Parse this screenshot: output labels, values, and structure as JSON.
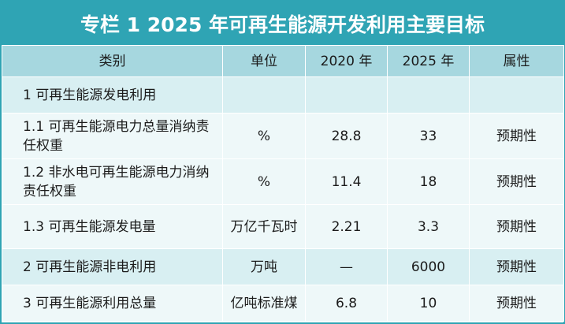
{
  "title": "专栏 1 2025 年可再生能源开发利用主要目标",
  "columns": [
    "类别",
    "单位",
    "2020 年",
    "2025 年",
    "属性"
  ],
  "rows": [
    {
      "category": "1 可再生能源发电利用",
      "unit": "",
      "y2020": "",
      "y2025": "",
      "attribute": ""
    },
    {
      "category": "1.1 可再生能源电力总量消纳责任权重",
      "unit": "%",
      "y2020": "28.8",
      "y2025": "33",
      "attribute": "预期性"
    },
    {
      "category": "1.2 非水电可再生能源电力消纳责任权重",
      "unit": "%",
      "y2020": "11.4",
      "y2025": "18",
      "attribute": "预期性"
    },
    {
      "category": "1.3 可再生能源发电量",
      "unit": "万亿千瓦时",
      "y2020": "2.21",
      "y2025": "3.3",
      "attribute": "预期性"
    },
    {
      "category": "2 可再生能源非电利用",
      "unit": "万吨",
      "y2020": "—",
      "y2025": "6000",
      "attribute": "预期性"
    },
    {
      "category": "3 可再生能源利用总量",
      "unit": "亿吨标准煤",
      "y2020": "6.8",
      "y2025": "10",
      "attribute": "预期性"
    }
  ],
  "colors": {
    "accent": "#2fa4b4",
    "header_row": "#a6d7df",
    "row_dark": "#d8eff2",
    "row_light": "#eef8f9"
  }
}
